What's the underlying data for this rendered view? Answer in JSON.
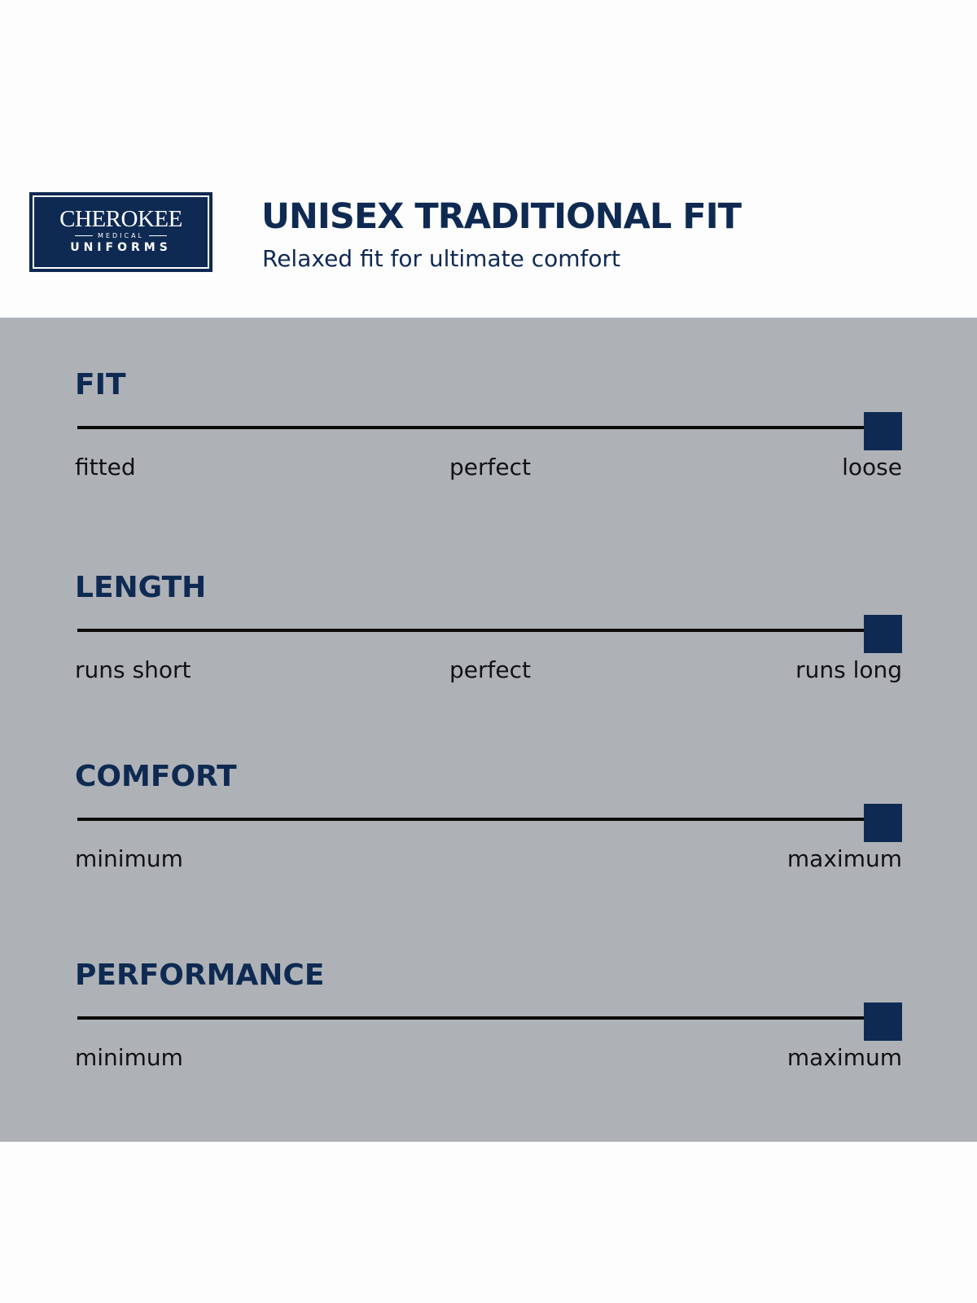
{
  "logo": {
    "brand": "CHEROKEE",
    "sub": "MEDICAL",
    "line2": "UNIFORMS"
  },
  "header": {
    "title": "UNISEX TRADITIONAL FIT",
    "subtitle": "Relaxed fit for ultimate comfort"
  },
  "colors": {
    "accent": "#0f2a52",
    "panel": "#aeb2b7"
  },
  "scales": [
    {
      "name": "FIT",
      "min_label": "fitted",
      "mid_label": "perfect",
      "max_label": "loose",
      "value": 1.0
    },
    {
      "name": "LENGTH",
      "min_label": "runs short",
      "mid_label": "perfect",
      "max_label": "runs long",
      "value": 1.0
    },
    {
      "name": "COMFORT",
      "min_label": "minimum",
      "max_label": "maximum",
      "value": 1.0
    },
    {
      "name": "PERFORMANCE",
      "min_label": "minimum",
      "max_label": "maximum",
      "value": 1.0
    }
  ]
}
